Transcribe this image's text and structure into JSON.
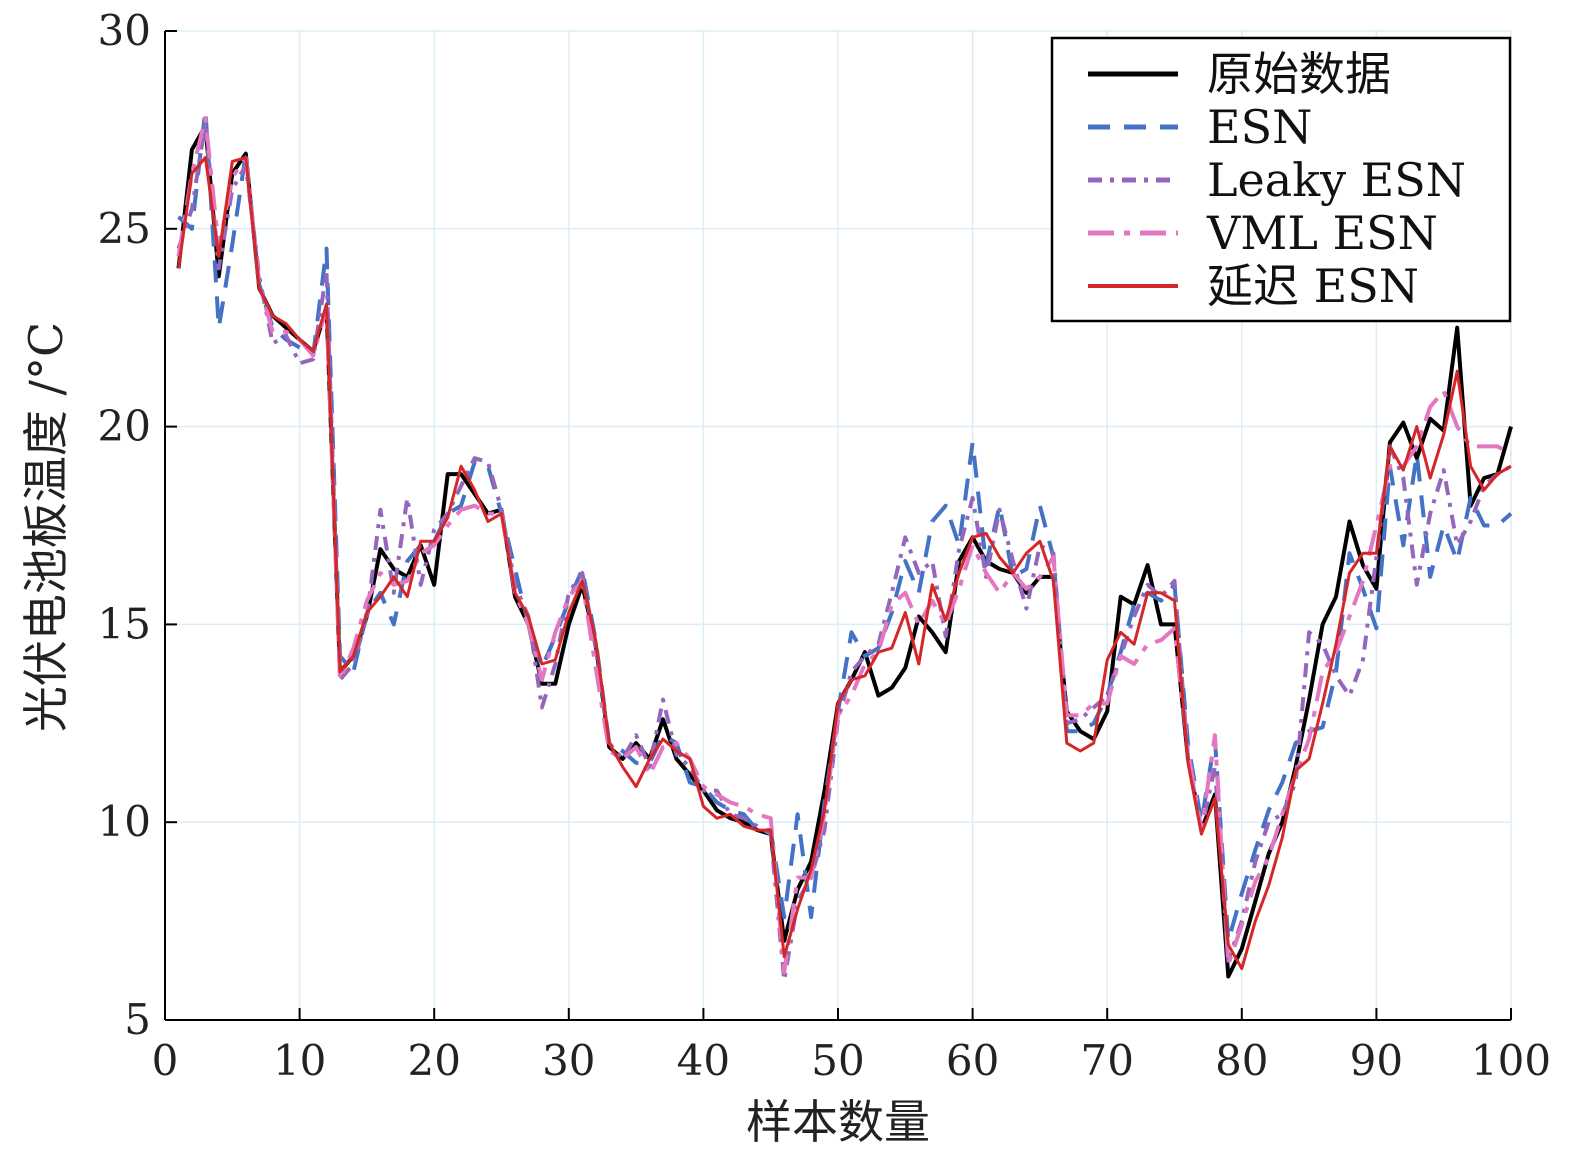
{
  "chart_data": {
    "type": "line",
    "xlabel": "样本数量",
    "ylabel": "光伏电池板温度 /°C",
    "xlim": [
      0,
      100
    ],
    "ylim": [
      5,
      30
    ],
    "xticks": [
      "0",
      "10",
      "20",
      "30",
      "40",
      "50",
      "60",
      "70",
      "80",
      "90",
      "100"
    ],
    "yticks": [
      "5",
      "10",
      "15",
      "20",
      "25",
      "30"
    ],
    "grid": true,
    "legend_position": "top-right",
    "x": [
      1,
      2,
      3,
      4,
      5,
      6,
      7,
      8,
      9,
      10,
      11,
      12,
      13,
      14,
      15,
      16,
      17,
      18,
      19,
      20,
      21,
      22,
      23,
      24,
      25,
      26,
      27,
      28,
      29,
      30,
      31,
      32,
      33,
      34,
      35,
      36,
      37,
      38,
      39,
      40,
      41,
      42,
      43,
      44,
      45,
      46,
      47,
      48,
      49,
      50,
      51,
      52,
      53,
      54,
      55,
      56,
      57,
      58,
      59,
      60,
      61,
      62,
      63,
      64,
      65,
      66,
      67,
      68,
      69,
      70,
      71,
      72,
      73,
      74,
      75,
      76,
      77,
      78,
      79,
      80,
      81,
      82,
      83,
      84,
      85,
      86,
      87,
      88,
      89,
      90,
      91,
      92,
      93,
      94,
      95,
      96,
      97,
      98,
      99,
      100
    ],
    "series": [
      {
        "name": "原始数据",
        "color": "#000000",
        "style": "solid",
        "width": 4,
        "values": [
          24.0,
          27.0,
          27.6,
          23.8,
          26.4,
          26.9,
          23.5,
          22.8,
          22.5,
          22.2,
          21.9,
          23.0,
          13.8,
          14.2,
          15.2,
          16.9,
          16.4,
          16.2,
          17.0,
          16.0,
          18.8,
          18.8,
          18.3,
          17.8,
          17.9,
          15.7,
          15.0,
          13.5,
          13.5,
          15.0,
          16.0,
          14.5,
          11.9,
          11.6,
          12.0,
          11.6,
          12.6,
          11.6,
          11.2,
          10.8,
          10.3,
          10.1,
          10.0,
          9.8,
          9.7,
          7.0,
          8.3,
          9.0,
          10.8,
          13.0,
          13.6,
          14.3,
          13.2,
          13.4,
          13.9,
          15.2,
          14.8,
          14.3,
          16.6,
          17.2,
          16.6,
          16.4,
          16.3,
          15.8,
          16.2,
          16.2,
          12.8,
          12.3,
          12.1,
          12.8,
          15.7,
          15.5,
          16.5,
          15.0,
          15.0,
          11.6,
          9.8,
          10.7,
          6.1,
          6.8,
          8.0,
          9.2,
          10.0,
          11.4,
          13.1,
          15.0,
          15.7,
          17.6,
          16.5,
          15.9,
          19.6,
          20.1,
          19.2,
          20.2,
          19.9,
          22.5,
          18.0,
          18.7,
          18.8,
          20.0
        ]
      },
      {
        "name": "ESN",
        "color": "#4472c4",
        "style": "dashed",
        "width": 4,
        "values": [
          25.3,
          25.0,
          28.0,
          22.5,
          24.6,
          26.9,
          23.6,
          22.5,
          22.2,
          22.0,
          21.8,
          24.5,
          14.2,
          13.8,
          15.3,
          15.8,
          15.0,
          16.6,
          17.0,
          17.1,
          17.8,
          18.0,
          19.1,
          19.0,
          17.8,
          16.4,
          15.0,
          13.9,
          14.7,
          15.6,
          16.4,
          14.6,
          12.0,
          11.8,
          11.5,
          11.5,
          12.2,
          12.0,
          11.0,
          10.9,
          10.5,
          10.3,
          10.2,
          9.8,
          9.8,
          7.6,
          10.2,
          7.6,
          10.5,
          12.8,
          14.8,
          14.2,
          14.4,
          15.3,
          16.6,
          15.8,
          17.6,
          18.0,
          17.0,
          19.6,
          16.5,
          18.0,
          16.2,
          16.4,
          18.0,
          16.7,
          12.3,
          12.3,
          12.5,
          13.2,
          14.3,
          15.5,
          15.8,
          15.6,
          16.0,
          12.0,
          10.0,
          12.1,
          7.0,
          8.2,
          9.3,
          10.3,
          11.0,
          12.0,
          12.3,
          12.4,
          13.8,
          16.8,
          15.9,
          14.9,
          19.0,
          17.0,
          19.3,
          16.2,
          17.5,
          16.6,
          18.2,
          17.5,
          17.5,
          17.8
        ]
      },
      {
        "name": "Leaky ESN",
        "color": "#9467bd",
        "style": "dashdot",
        "width": 4,
        "values": [
          24.5,
          25.5,
          27.7,
          24.0,
          26.0,
          26.6,
          23.8,
          22.1,
          22.3,
          21.6,
          21.7,
          23.9,
          13.6,
          14.0,
          15.2,
          17.9,
          15.8,
          18.2,
          16.0,
          17.4,
          17.8,
          18.5,
          19.2,
          19.1,
          17.9,
          16.0,
          15.2,
          12.9,
          14.0,
          15.8,
          16.3,
          14.4,
          12.0,
          11.6,
          12.2,
          11.4,
          13.1,
          11.7,
          11.4,
          10.8,
          10.8,
          10.2,
          10.1,
          9.9,
          9.7,
          6.0,
          8.0,
          8.6,
          9.8,
          12.6,
          13.8,
          14.2,
          14.5,
          15.8,
          17.2,
          16.3,
          16.6,
          14.7,
          16.9,
          18.2,
          16.2,
          17.9,
          16.6,
          15.4,
          17.0,
          16.8,
          12.5,
          12.6,
          12.9,
          13.2,
          14.2,
          15.2,
          16.0,
          15.7,
          16.1,
          11.6,
          9.8,
          11.4,
          6.5,
          7.5,
          9.0,
          10.0,
          10.2,
          11.0,
          14.8,
          14.5,
          13.7,
          13.2,
          14.1,
          16.7,
          19.5,
          18.7,
          16.0,
          17.8,
          18.9,
          17.0,
          17.6,
          18.5,
          18.8,
          19.0
        ]
      },
      {
        "name": "VML ESN",
        "color": "#e377c2",
        "style": "longdashdot",
        "width": 4,
        "values": [
          24.3,
          26.4,
          27.8,
          24.5,
          26.3,
          26.8,
          23.6,
          22.4,
          22.4,
          22.2,
          21.8,
          23.0,
          13.6,
          14.4,
          15.6,
          16.3,
          16.0,
          16.1,
          16.8,
          17.0,
          17.5,
          17.9,
          18.0,
          17.8,
          17.8,
          15.8,
          15.0,
          13.6,
          14.8,
          15.7,
          16.1,
          13.9,
          11.8,
          11.6,
          11.9,
          11.2,
          11.9,
          12.0,
          11.6,
          10.9,
          10.7,
          10.5,
          10.4,
          10.2,
          10.1,
          6.2,
          8.6,
          8.6,
          10.2,
          12.7,
          13.2,
          14.0,
          14.3,
          15.5,
          15.8,
          15.0,
          15.6,
          15.0,
          15.9,
          17.0,
          16.3,
          15.8,
          16.3,
          15.9,
          16.2,
          16.7,
          12.7,
          12.7,
          13.0,
          13.0,
          14.2,
          14.0,
          14.5,
          14.6,
          14.9,
          11.8,
          9.8,
          12.2,
          6.4,
          7.4,
          8.5,
          9.1,
          10.2,
          11.2,
          12.1,
          13.8,
          14.3,
          15.2,
          16.1,
          17.5,
          19.0,
          19.0,
          19.5,
          20.5,
          20.9,
          20.0,
          19.5,
          19.5,
          19.5,
          19.3
        ]
      },
      {
        "name": "延迟 ESN",
        "color": "#d62728",
        "style": "solid",
        "width": 3,
        "values": [
          24.0,
          26.4,
          26.8,
          24.3,
          26.7,
          26.8,
          23.5,
          22.8,
          22.6,
          22.2,
          21.9,
          23.1,
          13.8,
          14.2,
          15.3,
          15.7,
          16.2,
          15.7,
          17.1,
          17.1,
          17.7,
          19.0,
          18.4,
          17.6,
          17.8,
          15.8,
          15.2,
          14.0,
          14.1,
          15.3,
          16.1,
          14.6,
          12.0,
          11.4,
          10.9,
          11.6,
          12.1,
          11.8,
          11.6,
          10.4,
          10.1,
          10.2,
          9.9,
          9.8,
          9.8,
          6.6,
          7.8,
          8.8,
          10.3,
          13.0,
          13.6,
          13.7,
          14.3,
          14.4,
          15.3,
          14.0,
          16.0,
          15.1,
          16.3,
          17.2,
          17.3,
          16.7,
          16.3,
          16.8,
          17.1,
          16.1,
          12.0,
          11.8,
          12.0,
          14.1,
          14.8,
          14.5,
          15.8,
          15.8,
          15.6,
          11.5,
          9.7,
          10.6,
          6.9,
          6.3,
          7.5,
          8.4,
          9.6,
          11.3,
          11.6,
          13.0,
          14.5,
          16.3,
          16.8,
          16.8,
          19.5,
          18.9,
          20.0,
          18.7,
          19.8,
          21.4,
          19.0,
          18.4,
          18.8,
          19.0
        ]
      }
    ]
  }
}
